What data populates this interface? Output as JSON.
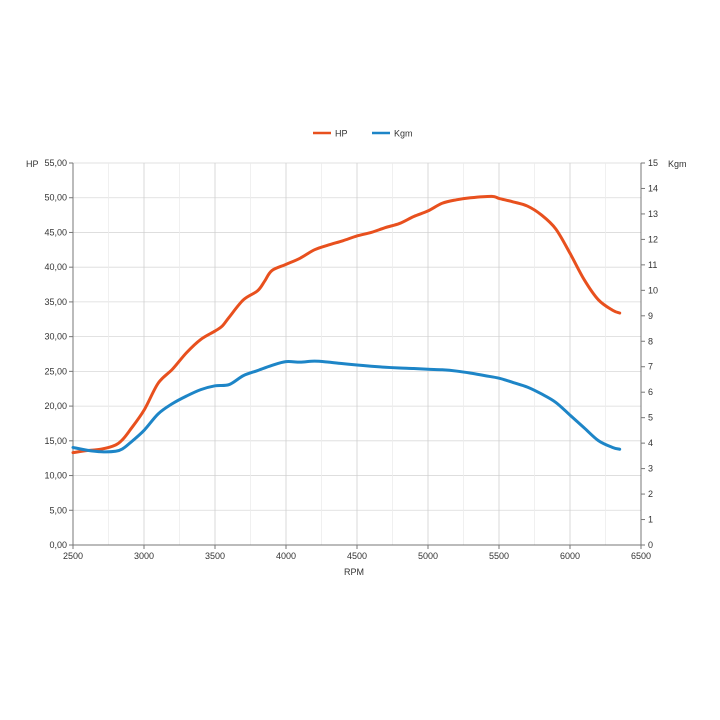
{
  "chart_data": {
    "type": "line",
    "xlabel": "RPM",
    "y_left_label": "HP",
    "y_right_label": "Kgm",
    "xlim": [
      2500,
      6500
    ],
    "ylim_left": [
      0,
      55
    ],
    "ylim_right": [
      0,
      15
    ],
    "x_ticks": [
      "2500",
      "3000",
      "3500",
      "4000",
      "4500",
      "5000",
      "5500",
      "6000",
      "6500"
    ],
    "y_left_ticks": [
      "0,00",
      "5,00",
      "10,00",
      "15,00",
      "20,00",
      "25,00",
      "30,00",
      "35,00",
      "40,00",
      "45,00",
      "50,00",
      "55,00"
    ],
    "y_right_ticks": [
      "0",
      "1",
      "2",
      "3",
      "4",
      "5",
      "6",
      "7",
      "8",
      "9",
      "10",
      "11",
      "12",
      "13",
      "14",
      "15"
    ],
    "grid": true,
    "legend_position": "top-center",
    "series": [
      {
        "name": "HP",
        "axis": "left",
        "color": "#e8501e",
        "points": [
          [
            2500,
            13.3
          ],
          [
            2600,
            13.6
          ],
          [
            2700,
            13.8
          ],
          [
            2800,
            14.4
          ],
          [
            2850,
            15.2
          ],
          [
            2900,
            16.5
          ],
          [
            3000,
            19.4
          ],
          [
            3100,
            23.3
          ],
          [
            3200,
            25.3
          ],
          [
            3300,
            27.7
          ],
          [
            3400,
            29.6
          ],
          [
            3500,
            30.8
          ],
          [
            3550,
            31.5
          ],
          [
            3600,
            32.8
          ],
          [
            3700,
            35.3
          ],
          [
            3800,
            36.6
          ],
          [
            3850,
            38.0
          ],
          [
            3900,
            39.5
          ],
          [
            4000,
            40.4
          ],
          [
            4100,
            41.3
          ],
          [
            4200,
            42.5
          ],
          [
            4300,
            43.2
          ],
          [
            4400,
            43.8
          ],
          [
            4500,
            44.5
          ],
          [
            4600,
            45.0
          ],
          [
            4700,
            45.7
          ],
          [
            4800,
            46.3
          ],
          [
            4900,
            47.3
          ],
          [
            5000,
            48.1
          ],
          [
            5100,
            49.2
          ],
          [
            5200,
            49.7
          ],
          [
            5300,
            50.0
          ],
          [
            5450,
            50.2
          ],
          [
            5500,
            49.9
          ],
          [
            5600,
            49.4
          ],
          [
            5700,
            48.8
          ],
          [
            5800,
            47.5
          ],
          [
            5900,
            45.5
          ],
          [
            6000,
            42.0
          ],
          [
            6100,
            38.2
          ],
          [
            6200,
            35.3
          ],
          [
            6300,
            33.8
          ],
          [
            6350,
            33.4
          ]
        ]
      },
      {
        "name": "Kgm",
        "axis": "right",
        "color": "#1d85c7",
        "points": [
          [
            2500,
            3.83
          ],
          [
            2600,
            3.72
          ],
          [
            2700,
            3.66
          ],
          [
            2800,
            3.68
          ],
          [
            2850,
            3.78
          ],
          [
            2900,
            4.0
          ],
          [
            3000,
            4.5
          ],
          [
            3100,
            5.15
          ],
          [
            3200,
            5.55
          ],
          [
            3300,
            5.85
          ],
          [
            3400,
            6.1
          ],
          [
            3500,
            6.25
          ],
          [
            3600,
            6.3
          ],
          [
            3700,
            6.65
          ],
          [
            3800,
            6.85
          ],
          [
            3900,
            7.05
          ],
          [
            4000,
            7.2
          ],
          [
            4100,
            7.18
          ],
          [
            4200,
            7.22
          ],
          [
            4300,
            7.18
          ],
          [
            4400,
            7.12
          ],
          [
            4500,
            7.07
          ],
          [
            4600,
            7.02
          ],
          [
            4700,
            6.98
          ],
          [
            4800,
            6.95
          ],
          [
            4900,
            6.93
          ],
          [
            5000,
            6.9
          ],
          [
            5100,
            6.88
          ],
          [
            5200,
            6.83
          ],
          [
            5300,
            6.75
          ],
          [
            5400,
            6.65
          ],
          [
            5500,
            6.55
          ],
          [
            5600,
            6.38
          ],
          [
            5700,
            6.2
          ],
          [
            5800,
            5.93
          ],
          [
            5900,
            5.6
          ],
          [
            6000,
            5.1
          ],
          [
            6100,
            4.6
          ],
          [
            6200,
            4.1
          ],
          [
            6300,
            3.83
          ],
          [
            6350,
            3.76
          ]
        ]
      }
    ]
  }
}
